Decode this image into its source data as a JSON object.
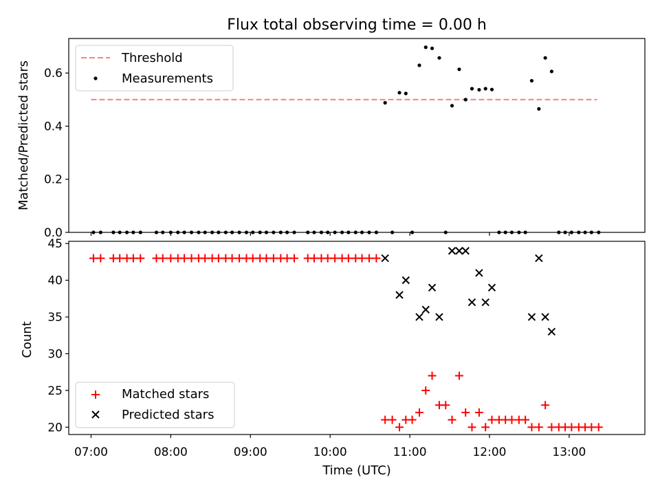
{
  "chart_data": [
    {
      "type": "scatter",
      "title": "Flux total observing time = 0.00 h",
      "ylabel": "Matched/Predicted stars",
      "xlabel": "",
      "xlim": [
        6.72,
        13.95
      ],
      "ylim": [
        0,
        0.73
      ],
      "yticks": [
        0,
        0.2,
        0.4,
        0.6
      ],
      "ytick_labels": [
        "0.0",
        "0.2",
        "0.4",
        "0.6"
      ],
      "grid": false,
      "legend_position": "top-left",
      "threshold": {
        "name": "Threshold",
        "value": 0.5,
        "x_range": [
          7.0,
          13.35
        ],
        "color": "#ff7f7f"
      },
      "series": [
        {
          "name": "Measurements",
          "color": "#000000",
          "x": [
            7.03,
            7.12,
            7.28,
            7.36,
            7.45,
            7.53,
            7.62,
            7.82,
            7.9,
            8.0,
            8.09,
            8.17,
            8.26,
            8.35,
            8.43,
            8.52,
            8.6,
            8.69,
            8.77,
            8.86,
            8.95,
            9.03,
            9.12,
            9.2,
            9.29,
            9.38,
            9.46,
            9.55,
            9.72,
            9.8,
            9.89,
            9.97,
            10.06,
            10.15,
            10.23,
            10.32,
            10.4,
            10.49,
            10.58,
            10.69,
            10.78,
            10.87,
            10.95,
            11.03,
            11.12,
            11.2,
            11.28,
            11.37,
            11.45,
            11.53,
            11.62,
            11.7,
            11.78,
            11.87,
            11.95,
            12.03,
            12.12,
            12.2,
            12.28,
            12.37,
            12.45,
            12.53,
            12.62,
            12.7,
            12.78,
            12.87,
            12.95,
            13.03,
            13.12,
            13.2,
            13.28,
            13.37
          ],
          "y": [
            0,
            0,
            0,
            0,
            0,
            0,
            0,
            0,
            0,
            0,
            0,
            0,
            0,
            0,
            0,
            0,
            0,
            0,
            0,
            0,
            0,
            0,
            0,
            0,
            0,
            0,
            0,
            0,
            0,
            0,
            0,
            0,
            0,
            0,
            0,
            0,
            0,
            0,
            0,
            0.488,
            0,
            0.526,
            0.523,
            0,
            0.629,
            0.697,
            0.693,
            0.657,
            0,
            0.477,
            0.614,
            0.5,
            0.541,
            0.537,
            0.541,
            0.538,
            0,
            0,
            0,
            0,
            0,
            0.571,
            0.465,
            0.657,
            0.606,
            0,
            0,
            0,
            0,
            0,
            0,
            0
          ]
        }
      ]
    },
    {
      "type": "scatter",
      "title": "",
      "xlabel": "Time (UTC)",
      "ylabel": "Count",
      "xlim": [
        6.72,
        13.95
      ],
      "ylim": [
        19,
        45.3
      ],
      "xticks": [
        7,
        8,
        9,
        10,
        11,
        12,
        13
      ],
      "xtick_labels": [
        "07:00",
        "08:00",
        "09:00",
        "10:00",
        "11:00",
        "12:00",
        "13:00"
      ],
      "yticks": [
        20,
        25,
        30,
        35,
        40,
        45
      ],
      "ytick_labels": [
        "20",
        "25",
        "30",
        "35",
        "40",
        "45"
      ],
      "grid": false,
      "legend_position": "bottom-left",
      "series": [
        {
          "name": "Matched stars",
          "marker": "+",
          "color": "#ff0000",
          "x": [
            7.03,
            7.12,
            7.28,
            7.36,
            7.45,
            7.53,
            7.62,
            7.82,
            7.9,
            8.0,
            8.09,
            8.17,
            8.26,
            8.35,
            8.43,
            8.52,
            8.6,
            8.69,
            8.77,
            8.86,
            8.95,
            9.03,
            9.12,
            9.2,
            9.29,
            9.38,
            9.46,
            9.55,
            9.72,
            9.8,
            9.89,
            9.97,
            10.06,
            10.15,
            10.23,
            10.32,
            10.4,
            10.49,
            10.58,
            10.69,
            10.78,
            10.87,
            10.95,
            11.03,
            11.12,
            11.2,
            11.28,
            11.37,
            11.45,
            11.53,
            11.62,
            11.7,
            11.78,
            11.87,
            11.95,
            12.03,
            12.12,
            12.2,
            12.28,
            12.37,
            12.45,
            12.53,
            12.62,
            12.7,
            12.78,
            12.87,
            12.95,
            13.03,
            13.12,
            13.2,
            13.28,
            13.37
          ],
          "y": [
            43,
            43,
            43,
            43,
            43,
            43,
            43,
            43,
            43,
            43,
            43,
            43,
            43,
            43,
            43,
            43,
            43,
            43,
            43,
            43,
            43,
            43,
            43,
            43,
            43,
            43,
            43,
            43,
            43,
            43,
            43,
            43,
            43,
            43,
            43,
            43,
            43,
            43,
            43,
            21,
            21,
            20,
            21,
            21,
            22,
            25,
            27,
            23,
            23,
            21,
            27,
            22,
            20,
            22,
            20,
            21,
            21,
            21,
            21,
            21,
            21,
            20,
            20,
            23,
            20,
            20,
            20,
            20,
            20,
            20,
            20,
            20
          ]
        },
        {
          "name": "Predicted stars",
          "marker": "x",
          "color": "#000000",
          "x": [
            10.69,
            10.87,
            10.95,
            11.12,
            11.2,
            11.28,
            11.37,
            11.53,
            11.62,
            11.7,
            11.78,
            11.87,
            11.95,
            12.03,
            12.53,
            12.62,
            12.7,
            12.78
          ],
          "y": [
            43,
            38,
            40,
            35,
            36,
            39,
            35,
            44,
            44,
            44,
            37,
            41,
            37,
            39,
            35,
            43,
            35,
            33
          ]
        }
      ]
    }
  ]
}
